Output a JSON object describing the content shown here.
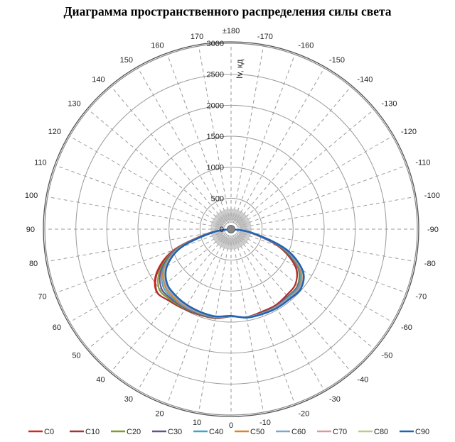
{
  "chart_data": {
    "type": "polar",
    "title": "Диаграмма пространственного распределения силы света",
    "radial_axis": {
      "label": "Iv, кд",
      "range": [
        0,
        3000
      ],
      "ticks": [
        0,
        500,
        1000,
        1500,
        2000,
        2500,
        3000
      ]
    },
    "angular_axis": {
      "step_deg": 10,
      "zero_at": "bottom",
      "tick_labels": [
        "0",
        "10",
        "20",
        "30",
        "40",
        "50",
        "60",
        "70",
        "80",
        "90",
        "100",
        "110",
        "120",
        "130",
        "140",
        "150",
        "160",
        "170",
        "±180",
        "-170",
        "-160",
        "-150",
        "-140",
        "-130",
        "-120",
        "-110",
        "-100",
        "-90",
        "-80",
        "-70",
        "-60",
        "-50",
        "-40",
        "-30",
        "-20",
        "-10"
      ]
    },
    "grid": true,
    "legend_position": "bottom",
    "angles_deg": [
      0,
      10,
      20,
      30,
      40,
      50,
      60,
      70,
      80,
      90
    ],
    "series": [
      {
        "name": "C0",
        "color": "#d42424",
        "values": [
          1410,
          1460,
          1470,
          1490,
          1520,
          1570,
          1380,
          980,
          360,
          0
        ],
        "mirror_values": [
          1410,
          1440,
          1420,
          1420,
          1390,
          1360,
          1200,
          820,
          300,
          0
        ]
      },
      {
        "name": "C10",
        "color": "#a83232",
        "values": [
          1410,
          1460,
          1475,
          1495,
          1525,
          1560,
          1360,
          960,
          350,
          0
        ],
        "mirror_values": [
          1410,
          1440,
          1425,
          1425,
          1395,
          1360,
          1190,
          810,
          300,
          0
        ]
      },
      {
        "name": "C20",
        "color": "#7f9a2e",
        "values": [
          1405,
          1455,
          1465,
          1480,
          1500,
          1510,
          1320,
          940,
          340,
          0
        ],
        "mirror_values": [
          1405,
          1445,
          1440,
          1440,
          1420,
          1400,
          1240,
          860,
          320,
          0
        ]
      },
      {
        "name": "C30",
        "color": "#6a4e8c",
        "values": [
          1405,
          1450,
          1460,
          1470,
          1480,
          1470,
          1290,
          920,
          330,
          0
        ],
        "mirror_values": [
          1405,
          1440,
          1440,
          1440,
          1420,
          1410,
          1250,
          870,
          320,
          0
        ]
      },
      {
        "name": "C40",
        "color": "#3ea4c2",
        "values": [
          1405,
          1445,
          1450,
          1460,
          1460,
          1430,
          1260,
          900,
          330,
          0
        ],
        "mirror_values": [
          1405,
          1440,
          1445,
          1445,
          1430,
          1420,
          1260,
          880,
          320,
          0
        ]
      },
      {
        "name": "C50",
        "color": "#e0822d",
        "values": [
          1405,
          1440,
          1445,
          1450,
          1440,
          1400,
          1240,
          890,
          320,
          0
        ],
        "mirror_values": [
          1405,
          1445,
          1450,
          1450,
          1445,
          1440,
          1280,
          900,
          330,
          0
        ]
      },
      {
        "name": "C60",
        "color": "#7ea6cf",
        "values": [
          1405,
          1440,
          1440,
          1440,
          1420,
          1380,
          1220,
          880,
          320,
          0
        ],
        "mirror_values": [
          1405,
          1445,
          1450,
          1455,
          1450,
          1450,
          1300,
          910,
          330,
          0
        ]
      },
      {
        "name": "C70",
        "color": "#d99a94",
        "values": [
          1405,
          1435,
          1435,
          1430,
          1410,
          1370,
          1210,
          870,
          310,
          0
        ],
        "mirror_values": [
          1405,
          1445,
          1455,
          1460,
          1460,
          1460,
          1310,
          920,
          340,
          0
        ]
      },
      {
        "name": "C80",
        "color": "#b3cf8a",
        "values": [
          1405,
          1430,
          1430,
          1420,
          1400,
          1360,
          1200,
          860,
          310,
          0
        ],
        "mirror_values": [
          1405,
          1450,
          1460,
          1465,
          1465,
          1470,
          1320,
          930,
          340,
          0
        ]
      },
      {
        "name": "C90",
        "color": "#1f63b4",
        "values": [
          1400,
          1430,
          1425,
          1415,
          1395,
          1350,
          1190,
          850,
          300,
          0
        ],
        "mirror_values": [
          1400,
          1450,
          1460,
          1470,
          1470,
          1475,
          1330,
          935,
          345,
          0
        ]
      }
    ]
  }
}
